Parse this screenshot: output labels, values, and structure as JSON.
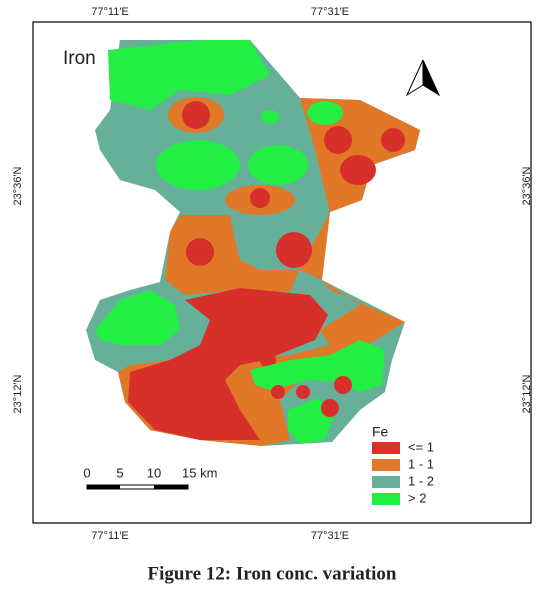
{
  "map_title": "Iron",
  "coordinates": {
    "top": [
      "77°11′E",
      "77°31′E"
    ],
    "bottom": [
      "77°11′E",
      "77°31′E"
    ],
    "left": [
      "23°36′N",
      "23°12′N"
    ],
    "right": [
      "23°36′N",
      "23°12′N"
    ]
  },
  "legend": {
    "title": "Fe",
    "items": [
      {
        "label": "<= 1",
        "color": "#d7302a"
      },
      {
        "label": "1 - 1",
        "color": "#e07828"
      },
      {
        "label": "1 - 2",
        "color": "#66b09a"
      },
      {
        "label": "> 2",
        "color": "#22ee44"
      }
    ]
  },
  "scale_bar": [
    "0",
    "5",
    "10",
    "15 km"
  ],
  "caption": "Figure 12: Iron conc. variation"
}
